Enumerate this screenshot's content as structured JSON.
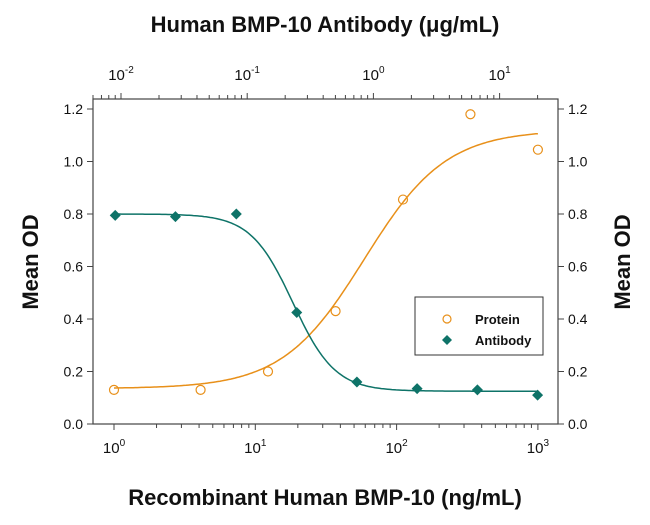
{
  "chart_data": {
    "type": "scatter",
    "title": "Human BMP-10 Antibody (μg/mL)",
    "xlabel": "Recombinant Human BMP-10 (ng/mL)",
    "ylabel": "Mean OD",
    "ylabel_right": "Mean OD",
    "x_scale": "log",
    "xlim": [
      1,
      1000
    ],
    "x_top_scale": "log",
    "x_top_ticks": [
      {
        "base": "10",
        "exp": "-2"
      },
      {
        "base": "10",
        "exp": "-1"
      },
      {
        "base": "10",
        "exp": "0"
      },
      {
        "base": "10",
        "exp": "1"
      }
    ],
    "x_top_values": [
      0.01,
      0.1,
      1,
      10
    ],
    "x_bottom_ticks": [
      {
        "base": "10",
        "exp": "0"
      },
      {
        "base": "10",
        "exp": "1"
      },
      {
        "base": "10",
        "exp": "2"
      },
      {
        "base": "10",
        "exp": "3"
      }
    ],
    "x_bottom_values": [
      1,
      10,
      100,
      1000
    ],
    "ylim": [
      0,
      1.2
    ],
    "y_ticks": [
      "0.0",
      "0.2",
      "0.4",
      "0.6",
      "0.8",
      "1.0",
      "1.2"
    ],
    "grid": false,
    "legend_placement": "lower-right",
    "series": [
      {
        "name": "Protein",
        "axis": "bottom",
        "marker": "open-circle",
        "color": "#E8901A",
        "x": [
          1,
          4.1,
          12.3,
          37,
          111,
          333,
          1000
        ],
        "y": [
          0.13,
          0.13,
          0.2,
          0.43,
          0.855,
          1.18,
          1.045
        ],
        "fit": {
          "bottom": 0.135,
          "top": 1.12,
          "ec50": 59,
          "hill": 1.5
        }
      },
      {
        "name": "Antibody",
        "axis": "top",
        "marker": "filled-diamond",
        "color": "#0E7368",
        "x": [
          0.009,
          0.027,
          0.082,
          0.247,
          0.74,
          2.22,
          6.67,
          20
        ],
        "y": [
          0.795,
          0.79,
          0.8,
          0.425,
          0.16,
          0.135,
          0.13,
          0.11
        ],
        "fit": {
          "bottom": 0.125,
          "top": 0.8,
          "ec50": 0.23,
          "hill": 2.6
        }
      }
    ]
  }
}
